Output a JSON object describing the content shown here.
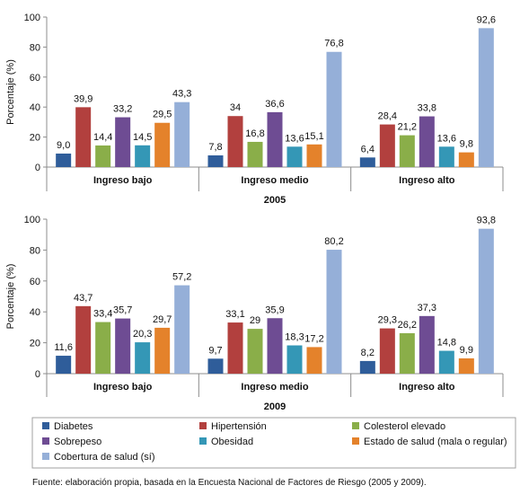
{
  "legend": [
    {
      "label": "Diabetes",
      "color": "#2F5D9A"
    },
    {
      "label": "Hipertensión",
      "color": "#B2403E"
    },
    {
      "label": "Colesterol elevado",
      "color": "#8AAE49"
    },
    {
      "label": "Sobrepeso",
      "color": "#6E4C93"
    },
    {
      "label": "Obesidad",
      "color": "#3497B6"
    },
    {
      "label": "Estado de salud (mala o regular)",
      "color": "#E4822B"
    },
    {
      "label": "Cobertura de salud (sí)",
      "color": "#95AFD8"
    }
  ],
  "source": "Fuente: elaboración propia, basada en la Encuesta Nacional de Factores de Riesgo (2005 y 2009).",
  "chart_data": [
    {
      "type": "bar",
      "year_label": "2005",
      "ylabel": "Porcentaje (%)",
      "ylim": [
        0,
        100
      ],
      "yticks": [
        "0",
        "20",
        "40",
        "60",
        "80",
        "100"
      ],
      "categories": [
        "Ingreso bajo",
        "Ingreso medio",
        "Ingreso  alto"
      ],
      "series": [
        {
          "name": "Diabetes",
          "values": [
            9.0,
            7.8,
            6.4
          ],
          "labels": [
            "9,0",
            "7,8",
            "6,4"
          ]
        },
        {
          "name": "Hipertensión",
          "values": [
            39.9,
            34,
            28.4
          ],
          "labels": [
            "39,9",
            "34",
            "28,4"
          ]
        },
        {
          "name": "Colesterol elevado",
          "values": [
            14.4,
            16.8,
            21.2
          ],
          "labels": [
            "14,4",
            "16,8",
            "21,2"
          ]
        },
        {
          "name": "Sobrepeso",
          "values": [
            33.2,
            36.6,
            33.8
          ],
          "labels": [
            "33,2",
            "36,6",
            "33,8"
          ]
        },
        {
          "name": "Obesidad",
          "values": [
            14.5,
            13.6,
            13.6
          ],
          "labels": [
            "14,5",
            "13,6",
            "13,6"
          ]
        },
        {
          "name": "Estado de salud (mala o regular)",
          "values": [
            29.5,
            15.1,
            9.8
          ],
          "labels": [
            "29,5",
            "15,1",
            "9,8"
          ]
        },
        {
          "name": "Cobertura de salud (sí)",
          "values": [
            43.3,
            76.8,
            92.6
          ],
          "labels": [
            "43,3",
            "76,8",
            "92,6"
          ]
        }
      ]
    },
    {
      "type": "bar",
      "year_label": "2009",
      "ylabel": "Porcentaje (%)",
      "ylim": [
        0,
        100
      ],
      "yticks": [
        "0",
        "20",
        "40",
        "60",
        "80",
        "100"
      ],
      "categories": [
        "Ingreso bajo",
        "Ingreso medio",
        "Ingreso alto"
      ],
      "series": [
        {
          "name": "Diabetes",
          "values": [
            11.6,
            9.7,
            8.2
          ],
          "labels": [
            "11,6",
            "9,7",
            "8,2"
          ]
        },
        {
          "name": "Hipertensión",
          "values": [
            43.7,
            33.1,
            29.3
          ],
          "labels": [
            "43,7",
            "33,1",
            "29,3"
          ]
        },
        {
          "name": "Colesterol elevado",
          "values": [
            33.4,
            29,
            26.2
          ],
          "labels": [
            "33,4",
            "29",
            "26,2"
          ]
        },
        {
          "name": "Sobrepeso",
          "values": [
            35.7,
            35.9,
            37.3
          ],
          "labels": [
            "35,7",
            "35,9",
            "37,3"
          ]
        },
        {
          "name": "Obesidad",
          "values": [
            20.3,
            18.3,
            14.8
          ],
          "labels": [
            "20,3",
            "18,3",
            "14,8"
          ]
        },
        {
          "name": "Estado de salud (mala o regular)",
          "values": [
            29.7,
            17.2,
            9.9
          ],
          "labels": [
            "29,7",
            "17,2",
            "9,9"
          ]
        },
        {
          "name": "Cobertura de salud (sí)",
          "values": [
            57.2,
            80.2,
            93.8
          ],
          "labels": [
            "57,2",
            "80,2",
            "93,8"
          ]
        }
      ]
    }
  ]
}
